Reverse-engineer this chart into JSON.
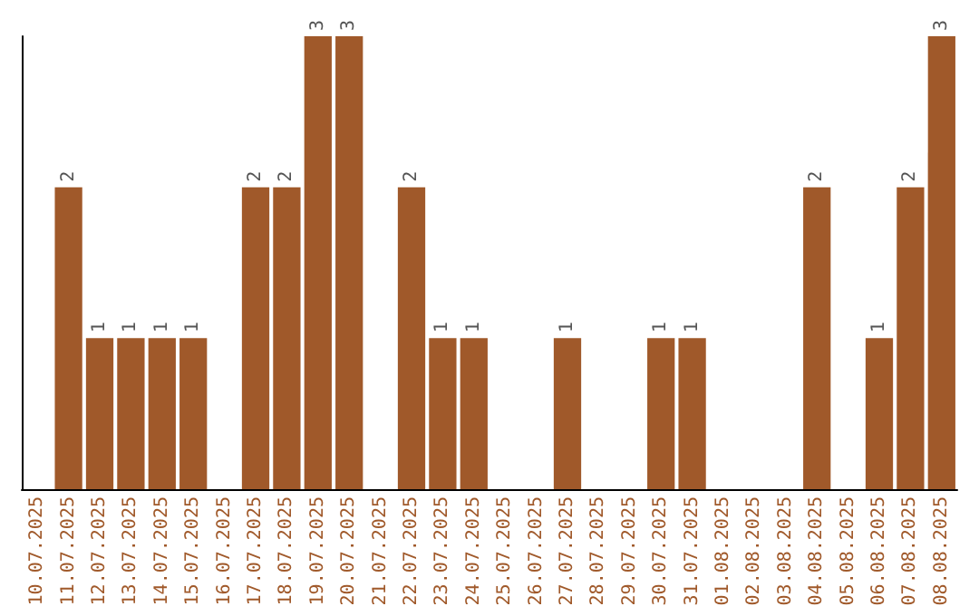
{
  "chart_data": {
    "type": "bar",
    "categories": [
      "10.07.2025",
      "11.07.2025",
      "12.07.2025",
      "13.07.2025",
      "14.07.2025",
      "15.07.2025",
      "16.07.2025",
      "17.07.2025",
      "18.07.2025",
      "19.07.2025",
      "20.07.2025",
      "21.07.2025",
      "22.07.2025",
      "23.07.2025",
      "24.07.2025",
      "25.07.2025",
      "26.07.2025",
      "27.07.2025",
      "28.07.2025",
      "29.07.2025",
      "30.07.2025",
      "31.07.2025",
      "01.08.2025",
      "02.08.2025",
      "03.08.2025",
      "04.08.2025",
      "05.08.2025",
      "06.08.2025",
      "07.08.2025",
      "08.08.2025"
    ],
    "values": [
      0,
      2,
      1,
      1,
      1,
      1,
      0,
      2,
      2,
      3,
      3,
      0,
      2,
      1,
      1,
      0,
      0,
      1,
      0,
      0,
      1,
      1,
      0,
      0,
      0,
      2,
      0,
      1,
      2,
      3
    ],
    "value_labels": [
      null,
      "2",
      "1",
      "1",
      "1",
      "1",
      null,
      "2",
      "2",
      "3",
      "3",
      null,
      "2",
      "1",
      "1",
      null,
      null,
      "1",
      null,
      null,
      "1",
      "1",
      null,
      null,
      null,
      "2",
      null,
      "1",
      "2",
      "3"
    ],
    "color": "#a0592a",
    "ylim": [
      0,
      3
    ],
    "tick_labels": "x"
  }
}
